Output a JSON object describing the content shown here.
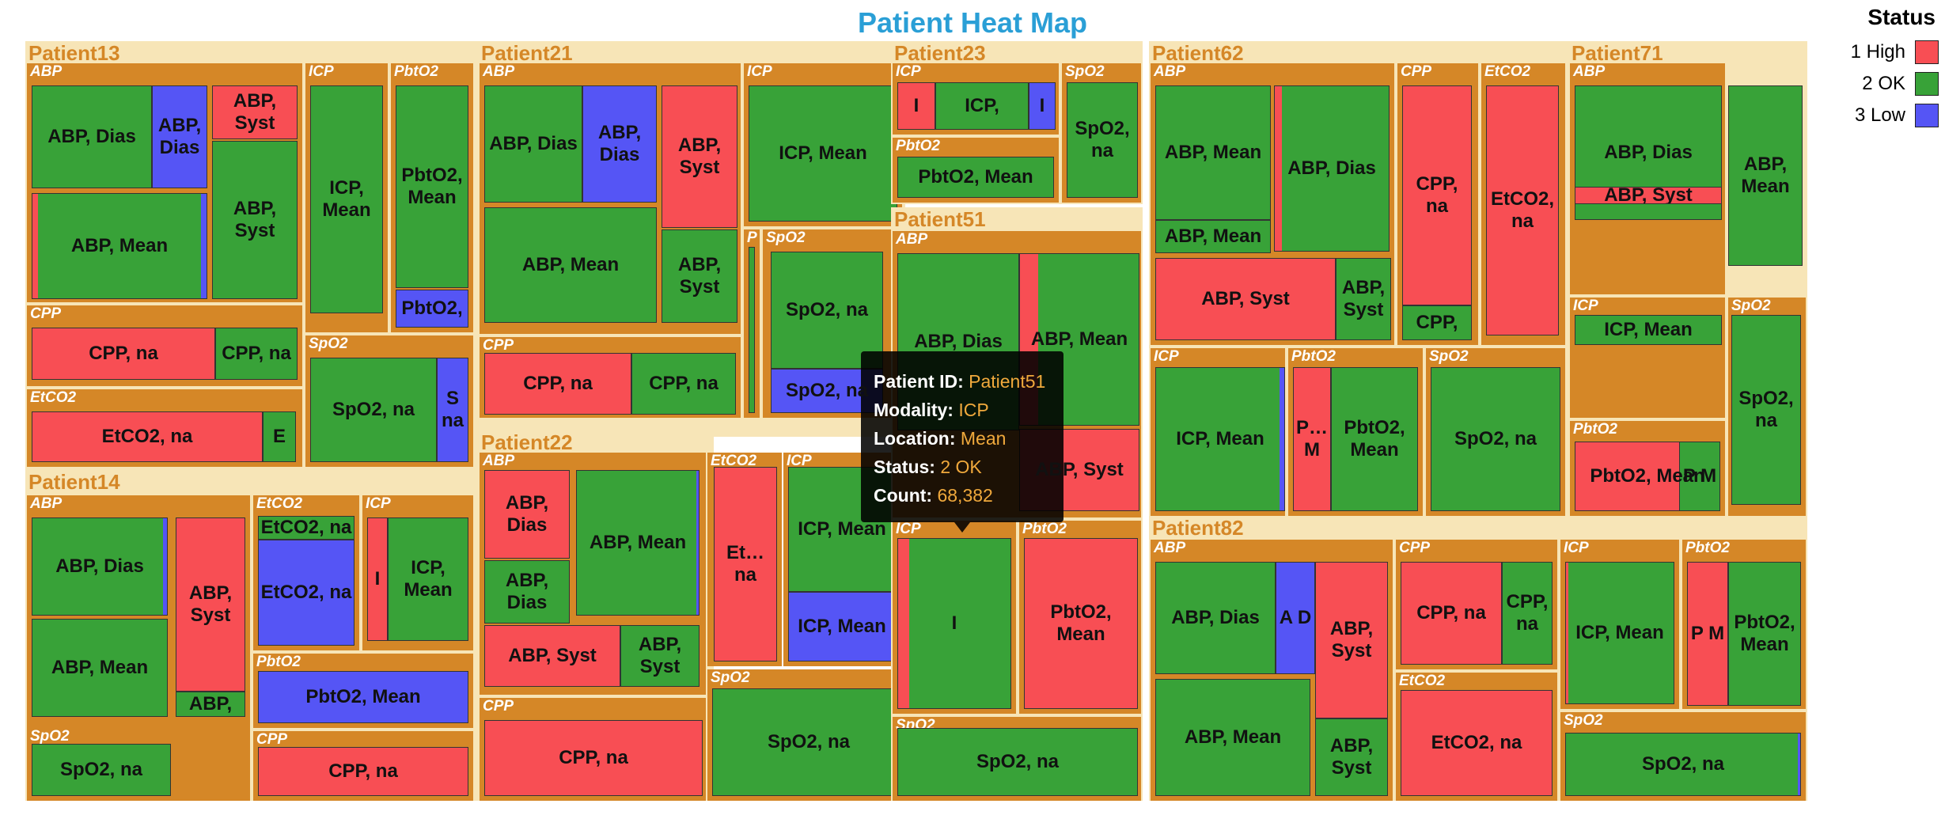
{
  "chart_data": {
    "type": "treemap",
    "title": "Patient Heat Map",
    "legend": {
      "title": "Status",
      "placement": "top-right",
      "items": [
        {
          "label": "1 High",
          "color": "#f84e54"
        },
        {
          "label": "2 OK",
          "color": "#38a238"
        },
        {
          "label": "3 Low",
          "color": "#5555f5"
        }
      ]
    },
    "status_colors": {
      "1 High": "#f84e54",
      "2 OK": "#38a238",
      "3 Low": "#5555f5"
    },
    "header_colors": {
      "patient_text": "#d58727",
      "patient_bg": "#f7e5b7",
      "modality_bg": "#d58727",
      "title": "#2a9fd6"
    },
    "patients": [
      {
        "name": "Patient13",
        "modalities": [
          {
            "name": "ABP",
            "cells": [
              {
                "label": "ABP, Dias",
                "status": "2 OK"
              },
              {
                "label": "ABP, Dias",
                "status": "3 Low"
              },
              {
                "label": "ABP, Syst",
                "status": "1 High"
              },
              {
                "label": "ABP, Syst",
                "status": "2 OK"
              },
              {
                "label": "ABP, Mean",
                "status": "2 OK"
              }
            ]
          },
          {
            "name": "ICP",
            "cells": [
              {
                "label": "ICP, Mean",
                "status": "2 OK"
              }
            ]
          },
          {
            "name": "PbtO2",
            "cells": [
              {
                "label": "PbtO2, Mean",
                "status": "2 OK"
              },
              {
                "label": "PbtO2,",
                "status": "3 Low"
              }
            ]
          },
          {
            "name": "CPP",
            "cells": [
              {
                "label": "CPP, na",
                "status": "1 High"
              },
              {
                "label": "CPP, na",
                "status": "2 OK"
              }
            ]
          },
          {
            "name": "SpO2",
            "cells": [
              {
                "label": "SpO2, na",
                "status": "2 OK"
              },
              {
                "label": "S na",
                "status": "3 Low"
              }
            ]
          },
          {
            "name": "EtCO2",
            "cells": [
              {
                "label": "EtCO2, na",
                "status": "1 High"
              },
              {
                "label": "E",
                "status": "2 OK"
              }
            ]
          }
        ]
      },
      {
        "name": "Patient14",
        "modalities": [
          {
            "name": "ABP",
            "cells": [
              {
                "label": "ABP, Dias",
                "status": "2 OK"
              },
              {
                "label": "ABP, Mean",
                "status": "2 OK"
              },
              {
                "label": "ABP, Syst",
                "status": "1 High"
              },
              {
                "label": "ABP,",
                "status": "2 OK"
              }
            ]
          },
          {
            "name": "EtCO2",
            "cells": [
              {
                "label": "EtCO2, na",
                "status": "2 OK"
              },
              {
                "label": "EtCO2, na",
                "status": "3 Low"
              }
            ]
          },
          {
            "name": "ICP",
            "cells": [
              {
                "label": "I",
                "status": "1 High"
              },
              {
                "label": "ICP, Mean",
                "status": "2 OK"
              }
            ]
          },
          {
            "name": "PbtO2",
            "cells": [
              {
                "label": "PbtO2, Mean",
                "status": "3 Low"
              }
            ]
          },
          {
            "name": "CPP",
            "cells": [
              {
                "label": "CPP, na",
                "status": "1 High"
              },
              {
                "label": "CPP,",
                "status": "2 OK"
              }
            ]
          },
          {
            "name": "SpO2",
            "cells": [
              {
                "label": "SpO2, na",
                "status": "2 OK"
              }
            ]
          }
        ]
      },
      {
        "name": "Patient21",
        "modalities": [
          {
            "name": "ABP",
            "cells": [
              {
                "label": "ABP, Dias",
                "status": "2 OK"
              },
              {
                "label": "ABP, Dias",
                "status": "3 Low"
              },
              {
                "label": "ABP, Syst",
                "status": "1 High"
              },
              {
                "label": "ABP, Mean",
                "status": "2 OK"
              },
              {
                "label": "ABP, Syst",
                "status": "2 OK"
              }
            ]
          },
          {
            "name": "ICP",
            "cells": [
              {
                "label": "ICP, Mean",
                "status": "2 OK"
              }
            ]
          },
          {
            "name": "P",
            "cells": [
              {
                "label": "",
                "status": "2 OK"
              }
            ]
          },
          {
            "name": "SpO2",
            "cells": [
              {
                "label": "SpO2, na",
                "status": "2 OK"
              },
              {
                "label": "SpO2, na",
                "status": "3 Low"
              }
            ]
          },
          {
            "name": "CPP",
            "cells": [
              {
                "label": "CPP, na",
                "status": "1 High"
              },
              {
                "label": "CPP, na",
                "status": "2 OK"
              }
            ]
          }
        ]
      },
      {
        "name": "Patient22",
        "modalities": [
          {
            "name": "ABP",
            "cells": [
              {
                "label": "ABP, Dias",
                "status": "1 High"
              },
              {
                "label": "ABP, Dias",
                "status": "2 OK"
              },
              {
                "label": "ABP, Mean",
                "status": "1 High"
              },
              {
                "label": "ABP, Syst",
                "status": "1 High"
              },
              {
                "label": "ABP, Syst",
                "status": "2 OK"
              }
            ]
          },
          {
            "name": "EtCO2",
            "cells": [
              {
                "label": "Et… na",
                "status": "1 High"
              }
            ]
          },
          {
            "name": "ICP",
            "cells": [
              {
                "label": "ICP, Mean",
                "status": "2 OK"
              },
              {
                "label": "ICP, Mean",
                "status": "3 Low"
              }
            ]
          },
          {
            "name": "SpO2",
            "cells": [
              {
                "label": "SpO2, na",
                "status": "2 OK"
              }
            ]
          },
          {
            "name": "CPP",
            "cells": [
              {
                "label": "CPP, na",
                "status": "1 High"
              }
            ]
          }
        ]
      },
      {
        "name": "Patient23",
        "modalities": [
          {
            "name": "ICP",
            "cells": [
              {
                "label": "I",
                "status": "1 High"
              },
              {
                "label": "ICP,",
                "status": "2 OK"
              },
              {
                "label": "I",
                "status": "3 Low"
              }
            ]
          },
          {
            "name": "SpO2",
            "cells": [
              {
                "label": "SpO2, na",
                "status": "2 OK"
              }
            ]
          },
          {
            "name": "PbtO2",
            "cells": [
              {
                "label": "PbtO2, Mean",
                "status": "2 OK"
              }
            ]
          }
        ]
      },
      {
        "name": "Patient51",
        "modalities": [
          {
            "name": "ABP",
            "cells": [
              {
                "label": "ABP, Dias",
                "status": "2 OK"
              },
              {
                "label": "ABP, Mean",
                "status": "2 OK"
              },
              {
                "label": "ABP, Syst",
                "status": "1 High"
              }
            ]
          },
          {
            "name": "ICP",
            "cells": [
              {
                "label": "I",
                "status": "1 High"
              },
              {
                "label": "ICP, Mean",
                "status": "2 OK"
              }
            ]
          },
          {
            "name": "PbtO2",
            "cells": [
              {
                "label": "PbtO2, Mean",
                "status": "1 High"
              },
              {
                "label": "PbtO2, Mean",
                "status": "2 OK"
              }
            ]
          },
          {
            "name": "SpO2",
            "cells": [
              {
                "label": "SpO2, na",
                "status": "2 OK"
              }
            ]
          }
        ]
      },
      {
        "name": "Patient62",
        "modalities": [
          {
            "name": "ABP",
            "cells": [
              {
                "label": "ABP, Mean",
                "status": "2 OK"
              },
              {
                "label": "ABP, Dias",
                "status": "3 Low"
              },
              {
                "label": "ABP, Mean",
                "status": "2 OK"
              },
              {
                "label": "ABP, Syst",
                "status": "1 High"
              },
              {
                "label": "ABP, Syst",
                "status": "2 OK"
              }
            ]
          },
          {
            "name": "CPP",
            "cells": [
              {
                "label": "CPP, na",
                "status": "1 High"
              },
              {
                "label": "CPP,",
                "status": "2 OK"
              }
            ]
          },
          {
            "name": "EtCO2",
            "cells": [
              {
                "label": "EtCO2, na",
                "status": "1 High"
              }
            ]
          },
          {
            "name": "ICP",
            "cells": [
              {
                "label": "ICP, Mean",
                "status": "2 OK"
              }
            ]
          },
          {
            "name": "PbtO2",
            "cells": [
              {
                "label": "P… M",
                "status": "1 High"
              },
              {
                "label": "PbtO2, Mean",
                "status": "2 OK"
              }
            ]
          },
          {
            "name": "SpO2",
            "cells": [
              {
                "label": "SpO2, na",
                "status": "2 OK"
              }
            ]
          }
        ]
      },
      {
        "name": "Patient71",
        "modalities": [
          {
            "name": "ABP",
            "cells": [
              {
                "label": "ABP, Dias",
                "status": "2 OK"
              },
              {
                "label": "ABP, Mean",
                "status": "2 OK"
              },
              {
                "label": "ABP, Syst",
                "status": "1 High"
              }
            ]
          },
          {
            "name": "ICP",
            "cells": [
              {
                "label": "ICP, Mean",
                "status": "2 OK"
              }
            ]
          },
          {
            "name": "SpO2",
            "cells": [
              {
                "label": "SpO2, na",
                "status": "2 OK"
              }
            ]
          },
          {
            "name": "PbtO2",
            "cells": [
              {
                "label": "PbtO2, Mean",
                "status": "1 High"
              },
              {
                "label": "P M",
                "status": "2 OK"
              }
            ]
          }
        ]
      },
      {
        "name": "Patient82",
        "modalities": [
          {
            "name": "ABP",
            "cells": [
              {
                "label": "ABP, Dias",
                "status": "2 OK"
              },
              {
                "label": "A D",
                "status": "3 Low"
              },
              {
                "label": "ABP, Syst",
                "status": "1 High"
              },
              {
                "label": "ABP, Mean",
                "status": "2 OK"
              },
              {
                "label": "ABP, Syst",
                "status": "2 OK"
              }
            ]
          },
          {
            "name": "CPP",
            "cells": [
              {
                "label": "CPP, na",
                "status": "1 High"
              },
              {
                "label": "CPP, na",
                "status": "2 OK"
              }
            ]
          },
          {
            "name": "ICP",
            "cells": [
              {
                "label": "ICP, Mean",
                "status": "2 OK"
              }
            ]
          },
          {
            "name": "PbtO2",
            "cells": [
              {
                "label": "P M",
                "status": "1 High"
              },
              {
                "label": "PbtO2, Mean",
                "status": "2 OK"
              }
            ]
          },
          {
            "name": "EtCO2",
            "cells": [
              {
                "label": "EtCO2, na",
                "status": "1 High"
              }
            ]
          },
          {
            "name": "SpO2",
            "cells": [
              {
                "label": "SpO2, na",
                "status": "2 OK"
              }
            ]
          }
        ]
      }
    ]
  },
  "tooltip": {
    "rows": [
      {
        "key": "Patient ID:",
        "value": "Patient51"
      },
      {
        "key": "Modality:",
        "value": "ICP"
      },
      {
        "key": "Location:",
        "value": "Mean"
      },
      {
        "key": "Status:",
        "value": "2 OK"
      },
      {
        "key": "Count:",
        "value": "68,382"
      }
    ]
  }
}
